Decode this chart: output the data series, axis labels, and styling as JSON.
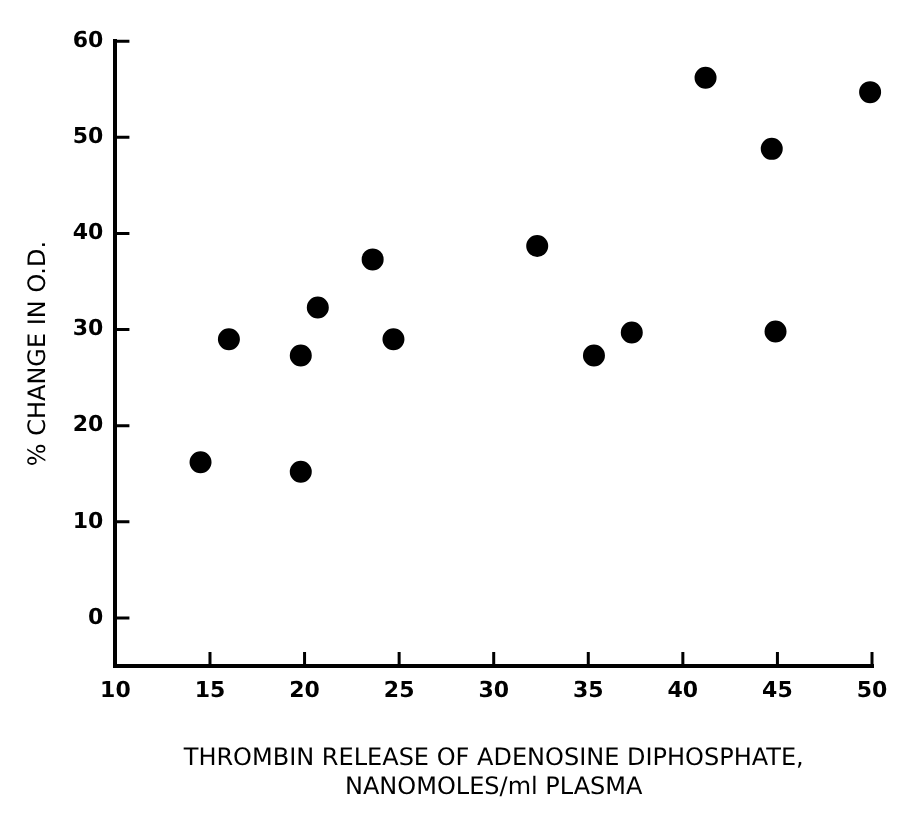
{
  "chart_data": {
    "type": "scatter",
    "xlabel": "THROMBIN RELEASE OF ADENOSINE DIPHOSPHATE,\nNANOMOLES/ml PLASMA",
    "ylabel": "% CHANGE IN O.D.",
    "x": [
      14.5,
      16.0,
      19.8,
      19.8,
      20.7,
      23.6,
      24.7,
      32.3,
      35.3,
      37.3,
      41.2,
      44.7,
      44.9,
      49.9
    ],
    "values": [
      16.2,
      29.0,
      27.3,
      15.2,
      32.3,
      37.3,
      29.0,
      38.7,
      27.3,
      29.7,
      56.2,
      48.8,
      29.8,
      54.7
    ],
    "color": "#000000",
    "marker": "circle",
    "xlim": [
      10,
      50
    ],
    "xticks": [
      10,
      15,
      20,
      25,
      30,
      35,
      40,
      45,
      50
    ],
    "ylim": [
      -5,
      60
    ],
    "yticks": [
      0,
      10,
      20,
      30,
      40,
      50,
      60
    ],
    "grid": false,
    "legend": false
  }
}
